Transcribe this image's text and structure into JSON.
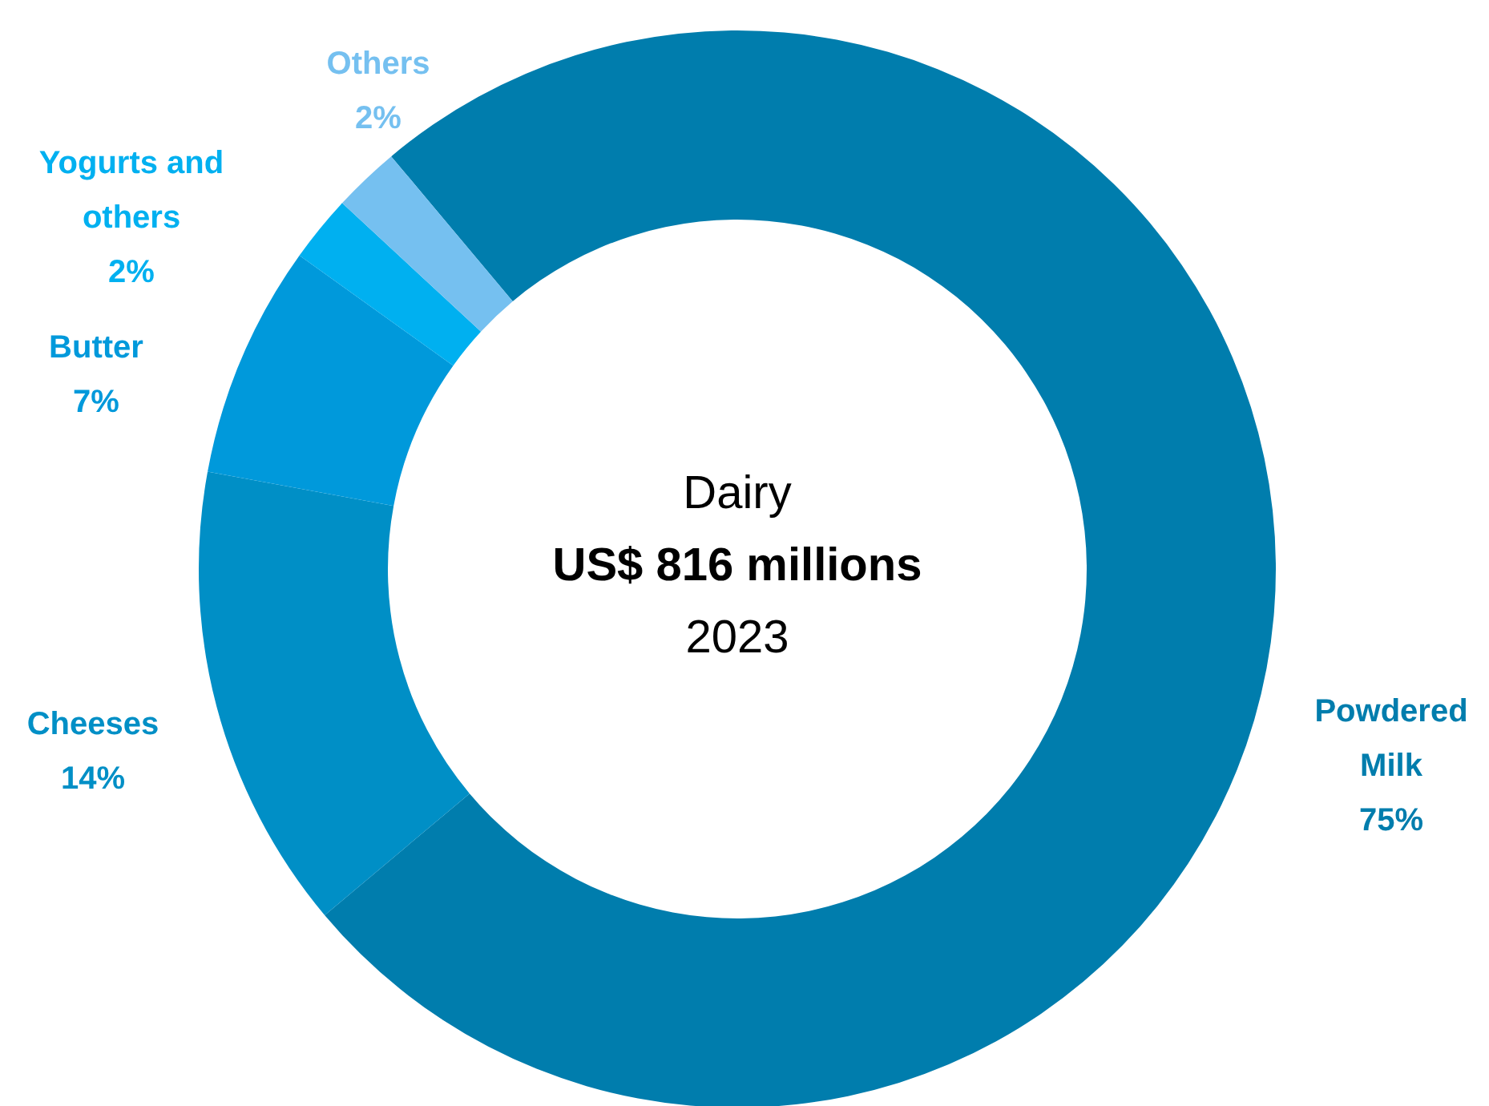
{
  "chart_data": {
    "type": "donut",
    "title": "Dairy",
    "subtitle": "US$ 816 millions",
    "annotations": [
      "2023"
    ],
    "categories": [
      "Powdered Milk",
      "Cheeses",
      "Butter",
      "Yogurts and others",
      "Others"
    ],
    "values": [
      75,
      14,
      7,
      2,
      2
    ],
    "value_labels": [
      "75%",
      "14%",
      "7%",
      "2%",
      "2%"
    ],
    "colors": [
      "#007dad",
      "#008fc6",
      "#0099db",
      "#00b0f0",
      "#75c0f0"
    ]
  }
}
